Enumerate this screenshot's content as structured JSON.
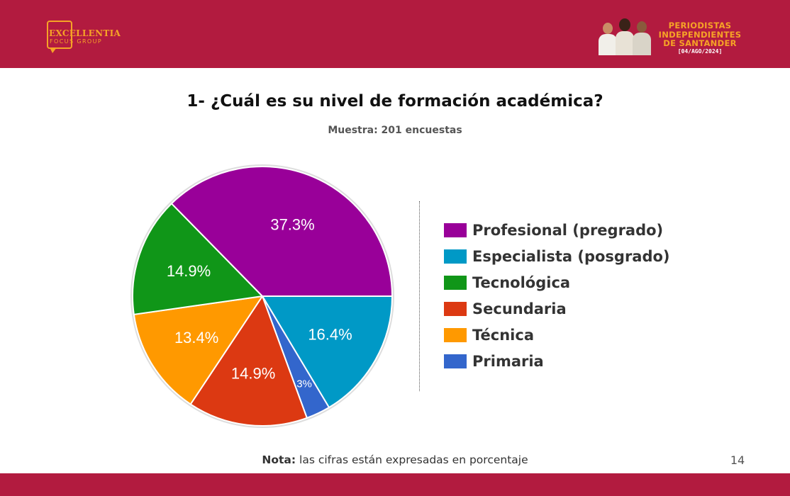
{
  "header": {
    "logo": {
      "name": "EXCELLENTIA",
      "sub": "FOCUS GROUP"
    },
    "brand": {
      "lines": [
        "PERIODISTAS",
        "INDEPENDIENTES",
        "DE SANTANDER"
      ],
      "date": "[04/AGO/2024]"
    },
    "colors": {
      "bar": "#b21b3f",
      "accent": "#f6a326"
    }
  },
  "footer": {
    "note_label": "Nota:",
    "note_text": "las cifras están expresadas en porcentaje",
    "page_number": "14"
  },
  "chart_data": {
    "type": "pie",
    "title": "1- ¿Cuál es su nivel de formación académica?",
    "subtitle": "Muestra: 201 encuestas",
    "legend_position": "right",
    "slices": [
      {
        "label": "Profesional (pregrado)",
        "value": 37.3,
        "display": "37.3%",
        "color": "#990099"
      },
      {
        "label": "Especialista (posgrado)",
        "value": 16.4,
        "display": "16.4%",
        "color": "#0099c6"
      },
      {
        "label": "Tecnológica",
        "value": 14.9,
        "display": "14.9%",
        "color": "#109618"
      },
      {
        "label": "Secundaria",
        "value": 14.9,
        "display": "14.9%",
        "color": "#dc3912"
      },
      {
        "label": "Técnica",
        "value": 13.4,
        "display": "13.4%",
        "color": "#ff9900"
      },
      {
        "label": "Primaria",
        "value": 3,
        "display": "3%",
        "color": "#3366cc"
      }
    ]
  }
}
